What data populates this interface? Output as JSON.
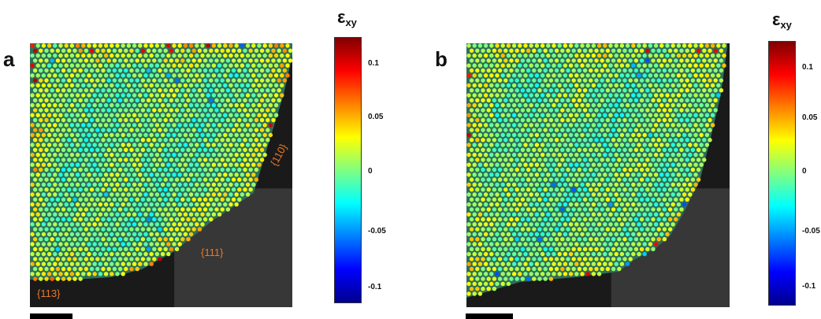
{
  "panels": [
    {
      "letter": "a",
      "colorbar_title": "ε",
      "colorbar_subscript": "xy",
      "ticks": [
        "0.1",
        "0.05",
        "0",
        "-0.05",
        "-0.1"
      ],
      "facets": [
        "{110}",
        "{111}",
        "{113}"
      ]
    },
    {
      "letter": "b",
      "colorbar_title": "ε",
      "colorbar_subscript": "xy",
      "ticks": [
        "0.1",
        "0.05",
        "0",
        "-0.05",
        "-0.1"
      ],
      "facets": []
    }
  ],
  "colors": {
    "facet_label": "#e8792a",
    "background_vacuum": "#1a1a1a",
    "jet": [
      "#00008f",
      "#0000ff",
      "#0080ff",
      "#00ffff",
      "#80ff80",
      "#ffff00",
      "#ff8000",
      "#ff0000",
      "#800000"
    ]
  },
  "colorbar_range": [
    -0.12,
    0.12
  ]
}
